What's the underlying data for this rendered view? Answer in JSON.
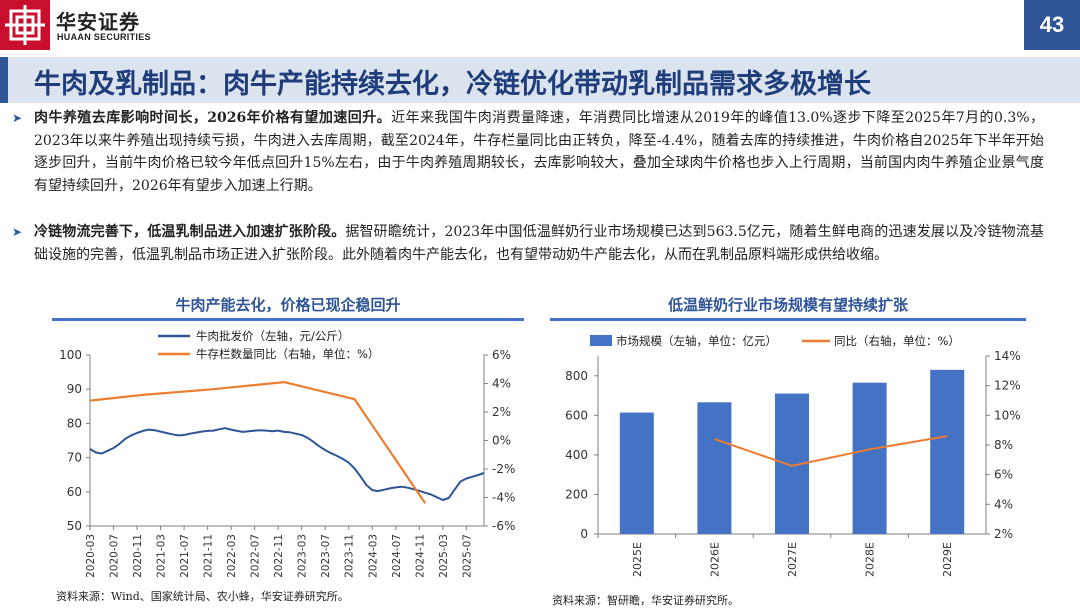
{
  "header": {
    "brand_cn": "华安证券",
    "brand_en": "HUAAN SECURITIES",
    "page_number": "43",
    "title": "牛肉及乳制品：肉牛产能持续去化，冷链优化带动乳制品需求多极增长",
    "colors": {
      "brand_red": "#c8102e",
      "accent_blue": "#2f5597",
      "title_bar": "#dbe3ef"
    }
  },
  "bullets": [
    {
      "bold": "肉牛养殖去库影响时间长，2026年价格有望加速回升。",
      "text": "近年来我国牛肉消费量降速，年消费同比增速从2019年的峰值13.0%逐步下降至2025年7月的0.3%，2023年以来牛养殖出现持续亏损，牛肉进入去库周期，截至2024年，牛存栏量同比由正转负，降至-4.4%，随着去库的持续推进，牛肉价格自2025年下半年开始逐步回升，当前牛肉价格已较今年低点回升15%左右，由于牛肉养殖周期较长，去库影响较大，叠加全球肉牛价格也步入上行周期，当前国内肉牛养殖企业景气度有望持续回升，2026年有望步入加速上行期。"
    },
    {
      "bold": "冷链物流完善下，低温乳制品进入加速扩张阶段。",
      "text": "据智研瞻统计，2023年中国低温鲜奶行业市场规模已达到563.5亿元，随着生鲜电商的迅速发展以及冷链物流基础设施的完善，低温乳制品市场正进入扩张阶段。此外随着肉牛产能去化，也有望带动奶牛产能去化，从而在乳制品原料端形成供给收缩。"
    }
  ],
  "chart_data": [
    {
      "type": "line",
      "title": "牛肉产能去化，价格已现企稳回升",
      "x_tick_labels": [
        "2020-03",
        "2020-07",
        "2020-11",
        "2021-03",
        "2021-07",
        "2021-11",
        "2022-03",
        "2022-07",
        "2022-11",
        "2023-03",
        "2023-07",
        "2023-11",
        "2024-03",
        "2024-07",
        "2024-11",
        "2025-03",
        "2025-07"
      ],
      "left_axis": {
        "ticks": [
          "100",
          "90",
          "80",
          "70",
          "60",
          "50"
        ],
        "range": [
          50,
          100
        ]
      },
      "right_axis": {
        "ticks": [
          "6%",
          "4%",
          "2%",
          "0%",
          "-2%",
          "-4%",
          "-6%"
        ],
        "range": [
          -6,
          6
        ]
      },
      "series": [
        {
          "name": "牛肉批发价（左轴，元/公斤）",
          "axis": "left",
          "color": "#2f5597",
          "points": [
            [
              "2020-03",
              72.5
            ],
            [
              "2020-04",
              71.5
            ],
            [
              "2020-05",
              71.2
            ],
            [
              "2020-06",
              72.0
            ],
            [
              "2020-07",
              72.8
            ],
            [
              "2020-08",
              74.0
            ],
            [
              "2020-09",
              75.5
            ],
            [
              "2020-10",
              76.5
            ],
            [
              "2020-11",
              77.2
            ],
            [
              "2020-12",
              77.8
            ],
            [
              "2021-01",
              78.2
            ],
            [
              "2021-02",
              78.0
            ],
            [
              "2021-03",
              77.6
            ],
            [
              "2021-04",
              77.2
            ],
            [
              "2021-05",
              76.8
            ],
            [
              "2021-06",
              76.5
            ],
            [
              "2021-07",
              76.6
            ],
            [
              "2021-08",
              77.0
            ],
            [
              "2021-09",
              77.3
            ],
            [
              "2021-10",
              77.6
            ],
            [
              "2021-11",
              77.8
            ],
            [
              "2021-12",
              77.9
            ],
            [
              "2022-01",
              78.3
            ],
            [
              "2022-02",
              78.6
            ],
            [
              "2022-03",
              78.2
            ],
            [
              "2022-04",
              77.8
            ],
            [
              "2022-05",
              77.5
            ],
            [
              "2022-06",
              77.7
            ],
            [
              "2022-07",
              77.9
            ],
            [
              "2022-08",
              78.0
            ],
            [
              "2022-09",
              77.9
            ],
            [
              "2022-10",
              77.7
            ],
            [
              "2022-11",
              77.9
            ],
            [
              "2022-12",
              77.5
            ],
            [
              "2023-01",
              77.4
            ],
            [
              "2023-02",
              77.0
            ],
            [
              "2023-03",
              76.6
            ],
            [
              "2023-04",
              75.8
            ],
            [
              "2023-05",
              74.6
            ],
            [
              "2023-06",
              73.3
            ],
            [
              "2023-07",
              72.2
            ],
            [
              "2023-08",
              71.3
            ],
            [
              "2023-09",
              70.5
            ],
            [
              "2023-10",
              69.6
            ],
            [
              "2023-11",
              68.5
            ],
            [
              "2023-12",
              66.8
            ],
            [
              "2024-01",
              64.5
            ],
            [
              "2024-02",
              62.0
            ],
            [
              "2024-03",
              60.5
            ],
            [
              "2024-04",
              60.2
            ],
            [
              "2024-05",
              60.6
            ],
            [
              "2024-06",
              61.0
            ],
            [
              "2024-07",
              61.3
            ],
            [
              "2024-08",
              61.5
            ],
            [
              "2024-09",
              61.2
            ],
            [
              "2024-10",
              60.8
            ],
            [
              "2024-11",
              60.3
            ],
            [
              "2024-12",
              59.7
            ],
            [
              "2025-01",
              59.2
            ],
            [
              "2025-02",
              58.4
            ],
            [
              "2025-03",
              57.6
            ],
            [
              "2025-04",
              58.2
            ],
            [
              "2025-05",
              60.6
            ],
            [
              "2025-06",
              63.0
            ],
            [
              "2025-07",
              63.9
            ],
            [
              "2025-08",
              64.4
            ],
            [
              "2025-09",
              64.9
            ],
            [
              "2025-10",
              65.5
            ]
          ]
        },
        {
          "name": "牛存栏数量同比（右轴，单位：%）",
          "axis": "right",
          "color": "#ed7d31",
          "points": [
            [
              "2019-12",
              2.8
            ],
            [
              "2020-12",
              3.2
            ],
            [
              "2021-12",
              3.6
            ],
            [
              "2022-12",
              4.1
            ],
            [
              "2023-12",
              2.9
            ],
            [
              "2024-12",
              -4.4
            ]
          ]
        }
      ],
      "legend_placement": "top-left",
      "source": "资料来源：Wind、国家统计局、农小蜂，华安证券研究所。"
    },
    {
      "type": "bar",
      "title": "低温鲜奶行业市场规模有望持续扩张",
      "categories": [
        "2025E",
        "2026E",
        "2027E",
        "2028E",
        "2029E"
      ],
      "left_axis": {
        "ticks": [
          "800",
          "600",
          "400",
          "200",
          "0"
        ],
        "range": [
          0,
          900
        ]
      },
      "right_axis": {
        "ticks": [
          "14%",
          "12%",
          "10%",
          "8%",
          "6%",
          "4%",
          "2%"
        ],
        "range": [
          2,
          14
        ]
      },
      "series": [
        {
          "name": "市场规模（左轴，单位：亿元）",
          "axis": "left",
          "type": "bar",
          "color": "#4472c4",
          "values": [
            614,
            666,
            710,
            765,
            830
          ]
        },
        {
          "name": "同比（右轴，单位：%）",
          "axis": "right",
          "type": "line",
          "color": "#ed7d31",
          "values": [
            null,
            8.4,
            6.6,
            7.7,
            8.6
          ]
        }
      ],
      "legend_placement": "top",
      "source": "资料来源：智研瞻，华安证券研究所。"
    }
  ]
}
